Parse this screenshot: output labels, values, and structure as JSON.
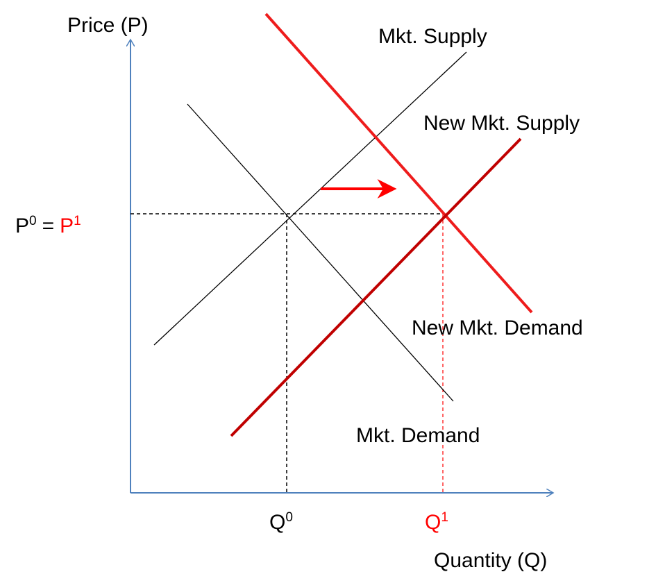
{
  "axes": {
    "y_label": "Price (P)",
    "x_label": "Quantity (Q)"
  },
  "curves": [
    {
      "label": "Mkt. Supply"
    },
    {
      "label": "New Mkt. Supply"
    },
    {
      "label": "New Mkt. Demand"
    },
    {
      "label": "Mkt. Demand"
    }
  ],
  "price_label": {
    "p0": "P",
    "p0_sup": "0",
    "equals": "=",
    "p1": "P",
    "p1_sup": "1"
  },
  "quantity_labels": [
    {
      "base": "Q",
      "sup": "0"
    },
    {
      "base": "Q",
      "sup": "1"
    }
  ]
}
